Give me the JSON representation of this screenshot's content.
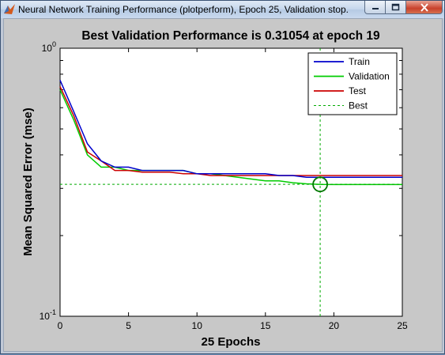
{
  "window": {
    "title": "Neural Network Training Performance (plotperform), Epoch 25, Validation stop.",
    "app_icon": "matlab-icon",
    "controls": [
      "minimize-icon",
      "maximize-icon",
      "close-icon"
    ]
  },
  "chart_data": {
    "type": "line",
    "title": "Best Validation Performance is 0.31054 at epoch 19",
    "xlabel": "25 Epochs",
    "ylabel": "Mean Squared Error  (mse)",
    "xlim": [
      0,
      25
    ],
    "ylim": [
      0.1,
      1
    ],
    "yscale": "log",
    "xticks": [
      "0",
      "5",
      "10",
      "15",
      "20",
      "25"
    ],
    "yticks": [
      {
        "base": "10",
        "exp": "0",
        "value": 1
      },
      {
        "base": "10",
        "exp": "-1",
        "value": 0.1
      }
    ],
    "legend_position": "top-right",
    "grid": false,
    "series": [
      {
        "name": "Train",
        "color": "#0000cc",
        "style": "solid",
        "x": [
          0,
          1,
          2,
          3,
          4,
          5,
          6,
          7,
          8,
          9,
          10,
          11,
          12,
          13,
          14,
          15,
          16,
          17,
          18,
          19,
          20,
          21,
          22,
          23,
          24,
          25
        ],
        "y": [
          0.76,
          0.58,
          0.44,
          0.38,
          0.36,
          0.36,
          0.35,
          0.35,
          0.35,
          0.35,
          0.34,
          0.34,
          0.34,
          0.34,
          0.34,
          0.34,
          0.335,
          0.335,
          0.33,
          0.33,
          0.33,
          0.33,
          0.33,
          0.33,
          0.33,
          0.33
        ]
      },
      {
        "name": "Validation",
        "color": "#00cc00",
        "style": "solid",
        "x": [
          0,
          1,
          2,
          3,
          4,
          5,
          6,
          7,
          8,
          9,
          10,
          11,
          12,
          13,
          14,
          15,
          16,
          17,
          18,
          19,
          20,
          21,
          22,
          23,
          24,
          25
        ],
        "y": [
          0.7,
          0.54,
          0.4,
          0.36,
          0.36,
          0.35,
          0.35,
          0.35,
          0.35,
          0.35,
          0.34,
          0.34,
          0.335,
          0.33,
          0.325,
          0.32,
          0.32,
          0.315,
          0.312,
          0.31054,
          0.31,
          0.31,
          0.31,
          0.31,
          0.31,
          0.31
        ]
      },
      {
        "name": "Test",
        "color": "#cc0000",
        "style": "solid",
        "x": [
          0,
          1,
          2,
          3,
          4,
          5,
          6,
          7,
          8,
          9,
          10,
          11,
          12,
          13,
          14,
          15,
          16,
          17,
          18,
          19,
          20,
          21,
          22,
          23,
          24,
          25
        ],
        "y": [
          0.72,
          0.56,
          0.41,
          0.38,
          0.35,
          0.35,
          0.345,
          0.345,
          0.345,
          0.34,
          0.34,
          0.335,
          0.335,
          0.335,
          0.335,
          0.335,
          0.335,
          0.335,
          0.335,
          0.335,
          0.335,
          0.335,
          0.335,
          0.335,
          0.335,
          0.335
        ]
      }
    ],
    "best": {
      "name": "Best",
      "color": "#00aa00",
      "style": "dashed",
      "epoch": 19,
      "value": 0.31054
    }
  }
}
